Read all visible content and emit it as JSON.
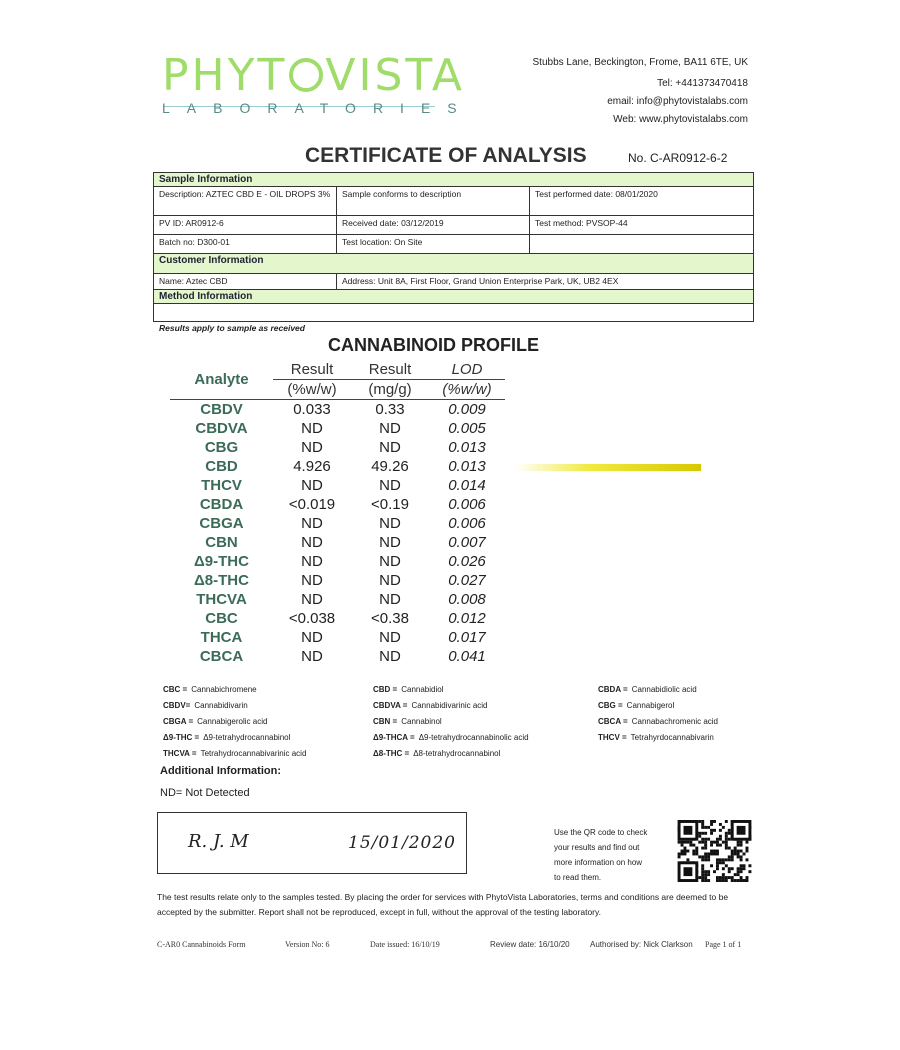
{
  "header": {
    "logo_text": "PHYTOVISTA",
    "logo_subtext": "LABORATORIES",
    "address": "Stubbs Lane, Beckington, Frome, BA11 6TE, UK",
    "tel": "Tel: +441373470418",
    "email": "email: info@phytovistalabs.com",
    "web": "Web: www.phytovistalabs.com",
    "brand_color": "#9fdc6a"
  },
  "title": "CERTIFICATE OF ANALYSIS",
  "certificate_no": "No. C-AR0912-6-2",
  "sample_info": {
    "heading": "Sample Information",
    "description": "Description: AZTEC CBD E - OIL DROPS 3%",
    "conforms": "Sample conforms to description",
    "test_performed": "Test performed date: 08/01/2020",
    "pv_id": "PV ID: AR0912-6",
    "received": "Received date: 03/12/2019",
    "test_method": "Test method: PVSOP-44",
    "batch": "Batch no: D300-01",
    "location": "Test location: On Site"
  },
  "customer_info": {
    "heading": "Customer Information",
    "name": "Name: Aztec CBD",
    "address": "Address: Unit 8A, First Floor, Grand Union Enterprise Park, UK, UB2 4EX"
  },
  "method_info": {
    "heading": "Method Information"
  },
  "results_note": "Results apply to sample as received",
  "profile": {
    "title": "CANNABINOID PROFILE",
    "headers": {
      "analyte": "Analyte",
      "r1_top": "Result",
      "r1_bot": "(%w/w)",
      "r2_top": "Result",
      "r2_bot": "(mg/g)",
      "lod_top": "LOD",
      "lod_bot": "(%w/w)"
    },
    "rows": [
      {
        "analyte": "CBDV",
        "pct": "0.033",
        "mg": "0.33",
        "lod": "0.009"
      },
      {
        "analyte": "CBDVA",
        "pct": "ND",
        "mg": "ND",
        "lod": "0.005"
      },
      {
        "analyte": "CBG",
        "pct": "ND",
        "mg": "ND",
        "lod": "0.013"
      },
      {
        "analyte": "CBD",
        "pct": "4.926",
        "mg": "49.26",
        "lod": "0.013"
      },
      {
        "analyte": "THCV",
        "pct": "ND",
        "mg": "ND",
        "lod": "0.014"
      },
      {
        "analyte": "CBDA",
        "pct": "<0.019",
        "mg": "<0.19",
        "lod": "0.006"
      },
      {
        "analyte": "CBGA",
        "pct": "ND",
        "mg": "ND",
        "lod": "0.006"
      },
      {
        "analyte": "CBN",
        "pct": "ND",
        "mg": "ND",
        "lod": "0.007"
      },
      {
        "analyte": "Δ9-THC",
        "pct": "ND",
        "mg": "ND",
        "lod": "0.026"
      },
      {
        "analyte": "Δ8-THC",
        "pct": "ND",
        "mg": "ND",
        "lod": "0.027"
      },
      {
        "analyte": "THCVA",
        "pct": "ND",
        "mg": "ND",
        "lod": "0.008"
      },
      {
        "analyte": "CBC",
        "pct": "<0.038",
        "mg": "<0.38",
        "lod": "0.012"
      },
      {
        "analyte": "THCA",
        "pct": "ND",
        "mg": "ND",
        "lod": "0.017"
      },
      {
        "analyte": "CBCA",
        "pct": "ND",
        "mg": "ND",
        "lod": "0.041"
      }
    ]
  },
  "abbreviations": [
    [
      {
        "k": "CBC =",
        "v": "Cannabichromene"
      },
      {
        "k": "CBDV=",
        "v": "Cannabidivarin"
      },
      {
        "k": "CBGA =",
        "v": "Cannabigerolic acid"
      },
      {
        "k": "Δ9-THC =",
        "v": "Δ9-tetrahydrocannabinol"
      },
      {
        "k": "THCVA =",
        "v": "Tetrahydrocannabivarinic acid"
      }
    ],
    [
      {
        "k": "CBD =",
        "v": "Cannabidiol"
      },
      {
        "k": "CBDVA =",
        "v": "Cannabidivarinic acid"
      },
      {
        "k": "CBN =",
        "v": "Cannabinol"
      },
      {
        "k": "Δ9-THCA =",
        "v": "Δ9-tetrahydrocannabinolic acid"
      },
      {
        "k": "Δ8-THC =",
        "v": "Δ8-tetrahydrocannabinol"
      }
    ],
    [
      {
        "k": "CBDA =",
        "v": "Cannabidiolic acid"
      },
      {
        "k": "CBG =",
        "v": "Cannabigerol"
      },
      {
        "k": "CBCA =",
        "v": "Cannabachromenic acid"
      },
      {
        "k": "THCV =",
        "v": "Tetrahyrdocannabivarin"
      }
    ]
  ],
  "additional_info": {
    "heading": "Additional Information:",
    "nd": "ND= Not Detected"
  },
  "signature": {
    "initials": "R. J. M",
    "date": "15/01/2020"
  },
  "qr_text": [
    "Use the QR code to check",
    "your results and find out",
    "more information on how",
    "to read them."
  ],
  "disclaimer": "The test results relate only to the samples tested.  By placing the order for services with PhytoVista Laboratories, terms and conditions are deemed to be accepted by the submitter. Report shall not be reproduced, except in full, without the approval of the testing laboratory.",
  "footer": {
    "form": "C-AR0 Cannabinoids Form",
    "version": "Version No:  6",
    "issued": "Date issued: 16/10/19",
    "review": "Review  date: 16/10/20",
    "authorised": "Authorised by: Nick Clarkson",
    "page": "Page  1 of 1"
  }
}
